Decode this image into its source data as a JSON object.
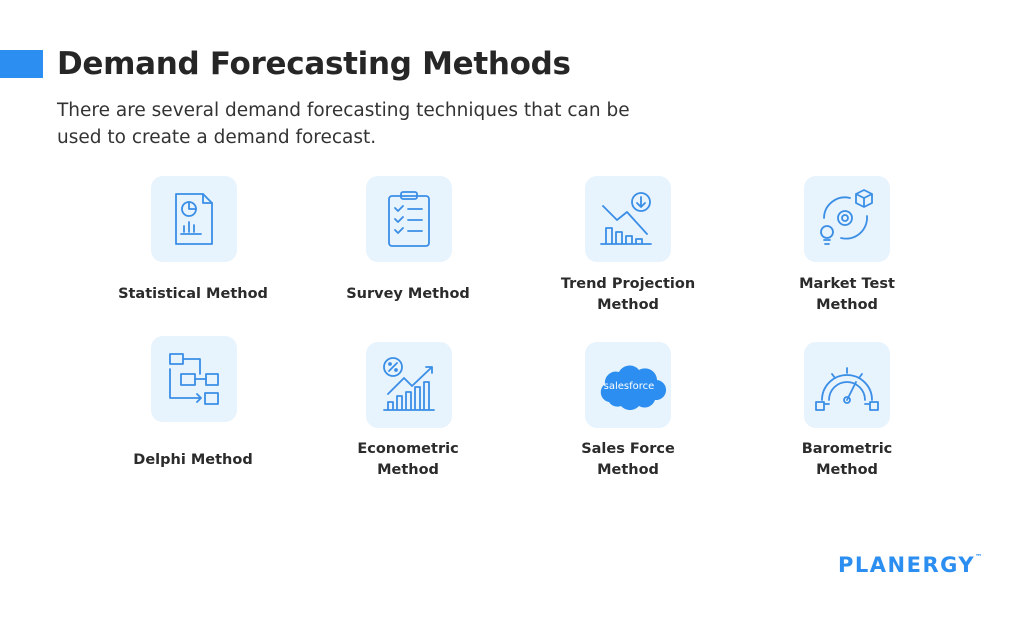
{
  "header": {
    "title": "Demand Forecasting Methods",
    "subtitle_lines": [
      "There are several demand forecasting techniques that can be",
      "used to create a demand forecast."
    ]
  },
  "methods": [
    {
      "lines": [
        "Statistical Method"
      ]
    },
    {
      "lines": [
        "Survey Method"
      ]
    },
    {
      "lines": [
        "Trend Projection",
        "Method"
      ]
    },
    {
      "lines": [
        "Market Test",
        "Method"
      ]
    },
    {
      "lines": [
        "Delphi Method"
      ]
    },
    {
      "lines": [
        "Econometric",
        "Method"
      ]
    },
    {
      "lines": [
        "Sales Force",
        "Method"
      ],
      "icon_text": "salesforce"
    },
    {
      "lines": [
        "Barometric",
        "Method"
      ]
    }
  ],
  "logo": {
    "name": "PLANERGY",
    "mark": "™"
  }
}
